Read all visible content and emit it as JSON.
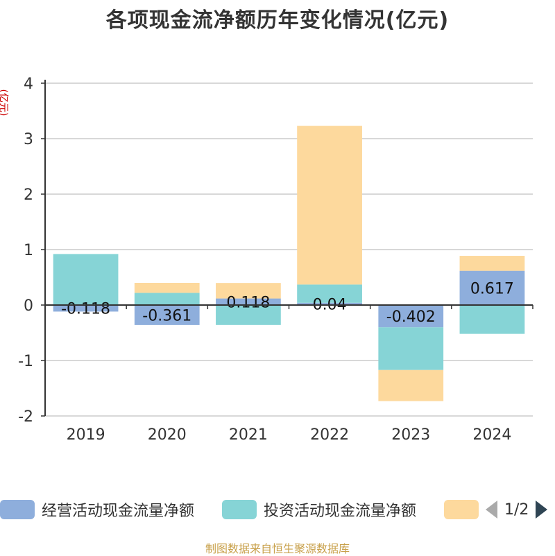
{
  "title": "各项现金流净额历年变化情况(亿元)",
  "unit_label": "(亿元)",
  "source": "制图数据来自恒生聚源数据库",
  "colors": {
    "operating": "#8eaedc",
    "investing": "#86d4d6",
    "financing": "#fdd99d",
    "axis": "#333333",
    "grid": "#cccccc"
  },
  "legend": {
    "items": [
      "经营活动现金流量净额",
      "投资活动现金流量净额",
      ""
    ],
    "pager": "1/2"
  },
  "chart_data": {
    "type": "bar",
    "stacked": true,
    "title": "各项现金流净额历年变化情况(亿元)",
    "ylabel": "(亿元)",
    "ylim": [
      -2,
      4
    ],
    "yticks": [
      4,
      3,
      2,
      1,
      0,
      -1,
      -2
    ],
    "categories": [
      "2019",
      "2020",
      "2021",
      "2022",
      "2023",
      "2024"
    ],
    "series": [
      {
        "name": "经营活动现金流量净额",
        "key": "operating",
        "values": [
          -0.118,
          -0.361,
          0.118,
          0.04,
          -0.402,
          0.617
        ],
        "labels": [
          "-0.118",
          "-0.361",
          "0.118",
          "0.04",
          "-0.402",
          "0.617"
        ]
      },
      {
        "name": "投资活动现金流量净额",
        "key": "investing",
        "values": [
          0.92,
          0.22,
          -0.36,
          0.33,
          -0.77,
          -0.52
        ]
      },
      {
        "name": "",
        "key": "financing",
        "values": [
          0.0,
          0.18,
          0.28,
          2.86,
          -0.56,
          0.27
        ]
      }
    ]
  }
}
